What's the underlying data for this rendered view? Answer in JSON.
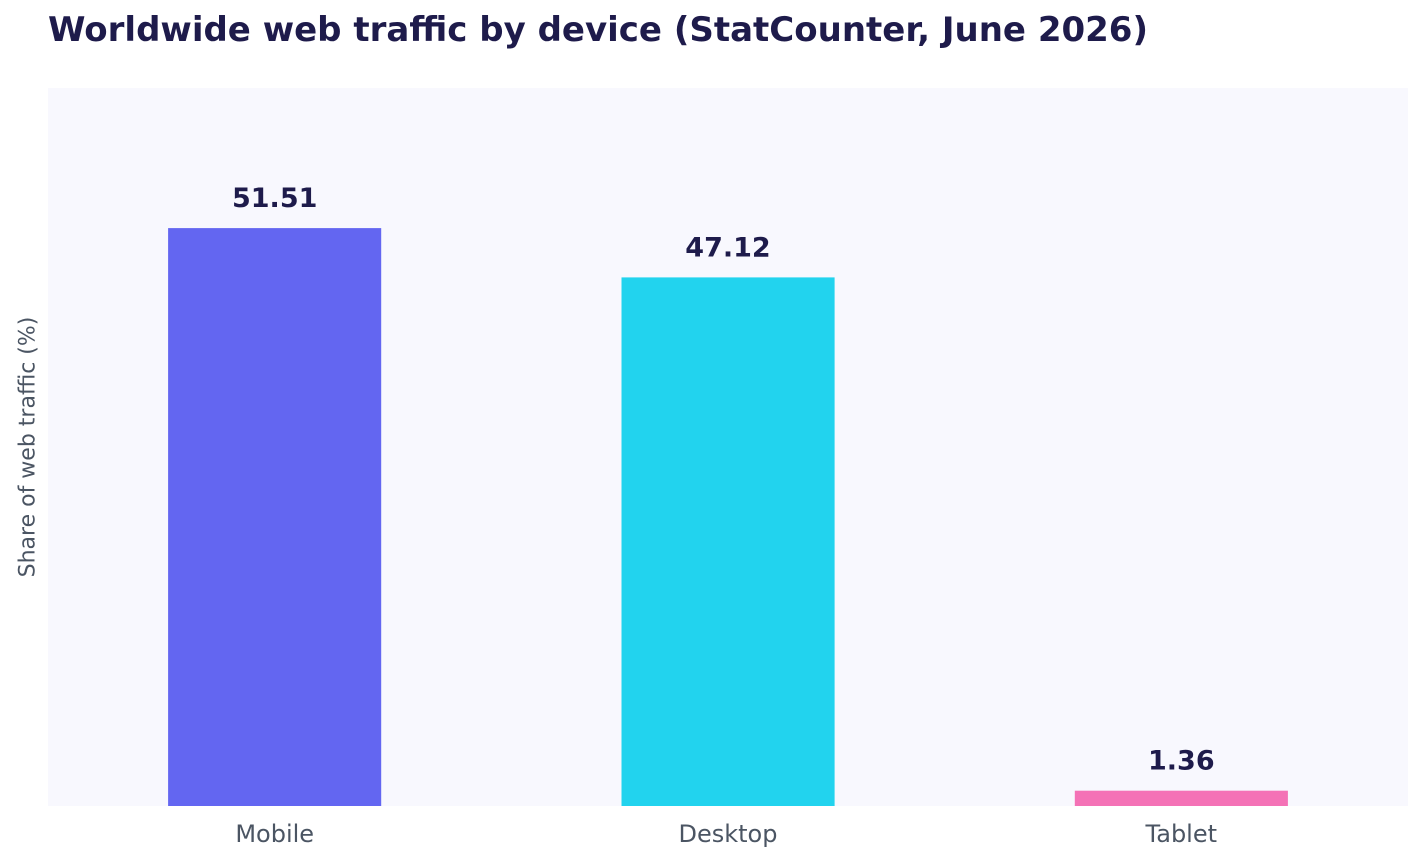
{
  "chart_data": {
    "type": "bar",
    "title": "Worldwide web traffic by device (StatCounter, June 2026)",
    "xlabel": "",
    "ylabel": "Share of web traffic (%)",
    "categories": [
      "Mobile",
      "Desktop",
      "Tablet"
    ],
    "values": [
      51.51,
      47.12,
      1.36
    ],
    "value_labels": [
      "51.51",
      "47.12",
      "1.36"
    ],
    "colors": [
      "#6366f1",
      "#22d3ee",
      "#f472b6"
    ],
    "ylim": [
      0,
      64
    ],
    "grid": false,
    "legend": "none",
    "plot_background": "#f8f8fe"
  }
}
